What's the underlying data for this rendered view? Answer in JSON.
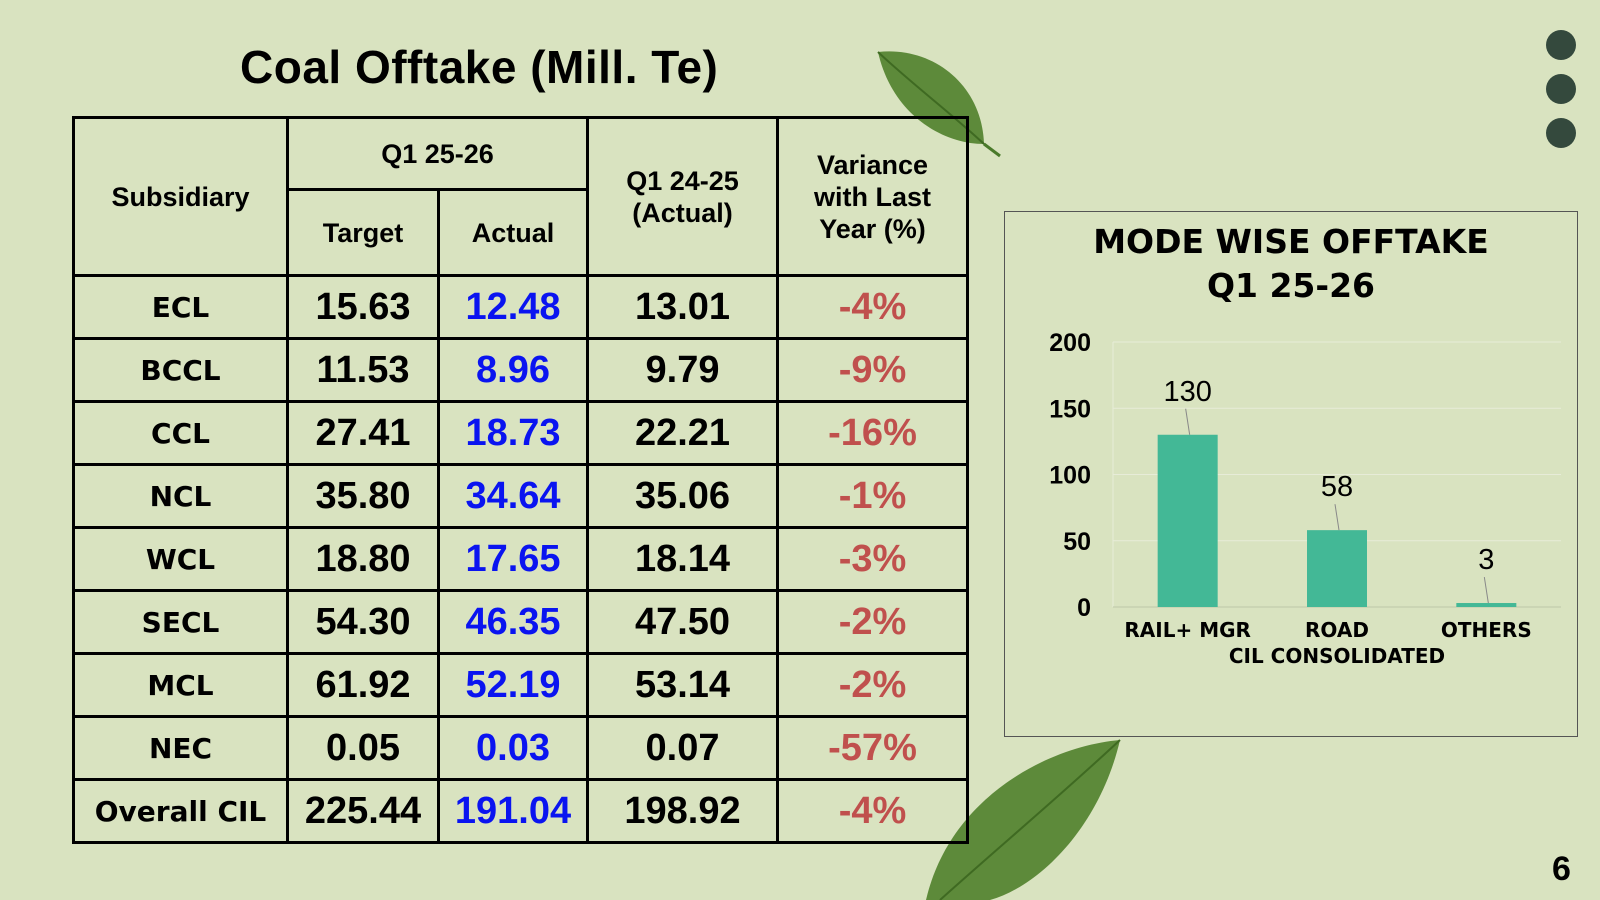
{
  "title": "Coal Offtake (Mill. Te)",
  "page_number": "6",
  "table": {
    "header": {
      "subsidiary": "Subsidiary",
      "q1_current": "Q1 25-26",
      "target": "Target",
      "actual": "Actual",
      "q1_prev_line1": "Q1 24-25",
      "q1_prev_line2": "(Actual)",
      "variance_line1": "Variance",
      "variance_line2": "with Last",
      "variance_line3": "Year (%)"
    },
    "rows": [
      {
        "subsidiary": "ECL",
        "target": "15.63",
        "actual": "12.48",
        "prev": "13.01",
        "variance": "-4%"
      },
      {
        "subsidiary": "BCCL",
        "target": "11.53",
        "actual": "8.96",
        "prev": "9.79",
        "variance": "-9%"
      },
      {
        "subsidiary": "CCL",
        "target": "27.41",
        "actual": "18.73",
        "prev": "22.21",
        "variance": "-16%"
      },
      {
        "subsidiary": "NCL",
        "target": "35.80",
        "actual": "34.64",
        "prev": "35.06",
        "variance": "-1%"
      },
      {
        "subsidiary": "WCL",
        "target": "18.80",
        "actual": "17.65",
        "prev": "18.14",
        "variance": "-3%"
      },
      {
        "subsidiary": "SECL",
        "target": "54.30",
        "actual": "46.35",
        "prev": "47.50",
        "variance": "-2%"
      },
      {
        "subsidiary": "MCL",
        "target": "61.92",
        "actual": "52.19",
        "prev": "53.14",
        "variance": "-2%"
      },
      {
        "subsidiary": "NEC",
        "target": "0.05",
        "actual": "0.03",
        "prev": "0.07",
        "variance": "-57%"
      },
      {
        "subsidiary": "Overall CIL",
        "target": "225.44",
        "actual": "191.04",
        "prev": "198.92",
        "variance": "-4%"
      }
    ]
  },
  "colors": {
    "background": "#d9e3c0",
    "actual_text": "#0a14f0",
    "variance_text": "#c0504d",
    "bar": "#43b896",
    "dots": "#34493d"
  },
  "chart_data": {
    "type": "bar",
    "title_line1": "MODE WISE OFFTAKE",
    "title_line2": "Q1 25-26",
    "categories": [
      "RAIL+ MGR",
      "ROAD",
      "OTHERS"
    ],
    "values": [
      130,
      58,
      3
    ],
    "data_labels": [
      "130",
      "58",
      "3"
    ],
    "xlabel": "CIL CONSOLIDATED",
    "ylabel": "",
    "ylim": [
      0,
      200
    ],
    "yticks": [
      0,
      50,
      100,
      150,
      200
    ],
    "grid": true,
    "legend": "none"
  }
}
